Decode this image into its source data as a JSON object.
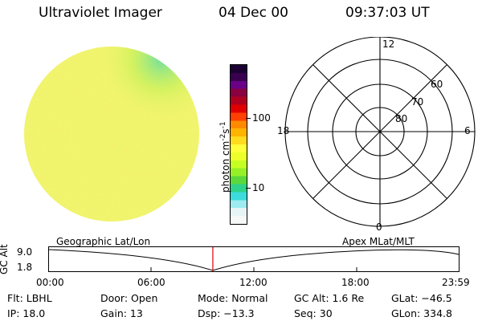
{
  "header": {
    "instrument": "Ultraviolet Imager",
    "date": "04 Dec 00",
    "time": "09:37:03 UT"
  },
  "colorbar": {
    "label": "photon cm",
    "label_sup1": "-2",
    "label_mid": "s",
    "label_sup2": "-1",
    "tick_100": "100",
    "tick_10": "10",
    "colors": [
      "#1a0033",
      "#3a0050",
      "#6a0088",
      "#8a0040",
      "#b00020",
      "#e00000",
      "#ff4000",
      "#ff8a00",
      "#ffb400",
      "#ffdc1e",
      "#ffff3c",
      "#ecff2a",
      "#c6ff22",
      "#96f028",
      "#5ad83c",
      "#2ed28a",
      "#3cdcdc",
      "#9cecf0",
      "#e6f4f6",
      "#f6f8f8"
    ]
  },
  "polar": {
    "mlt_top": "12",
    "mlt_left": "18",
    "mlt_right": "6",
    "mlt_bottom": "0",
    "lat_60": "60",
    "lat_70": "70",
    "lat_80": "80"
  },
  "altitude_plot": {
    "axis_label": "GC Alt",
    "y_top": "9.0",
    "y_bottom": "1.8",
    "left_title": "Geographic Lat/Lon",
    "right_title": "Apex MLat/MLT",
    "ticks": [
      "00:00",
      "06:00",
      "12:00",
      "18:00",
      "23:59"
    ],
    "current_time_fraction": 0.4007
  },
  "footer": {
    "row1": [
      "Flt: LBHL",
      "Door: Open",
      "Mode: Normal",
      "GC Alt: 1.6 Re",
      "GLat: −46.5"
    ],
    "row2": [
      "IP: 18.0",
      "Gain: 13",
      "Dsp:  −13.3",
      "Seq: 30",
      "GLon: 334.8"
    ]
  },
  "colors": {
    "disk_base": "#f0f56e",
    "polar_lines": "#000000",
    "time_marker": "#dd0000"
  }
}
